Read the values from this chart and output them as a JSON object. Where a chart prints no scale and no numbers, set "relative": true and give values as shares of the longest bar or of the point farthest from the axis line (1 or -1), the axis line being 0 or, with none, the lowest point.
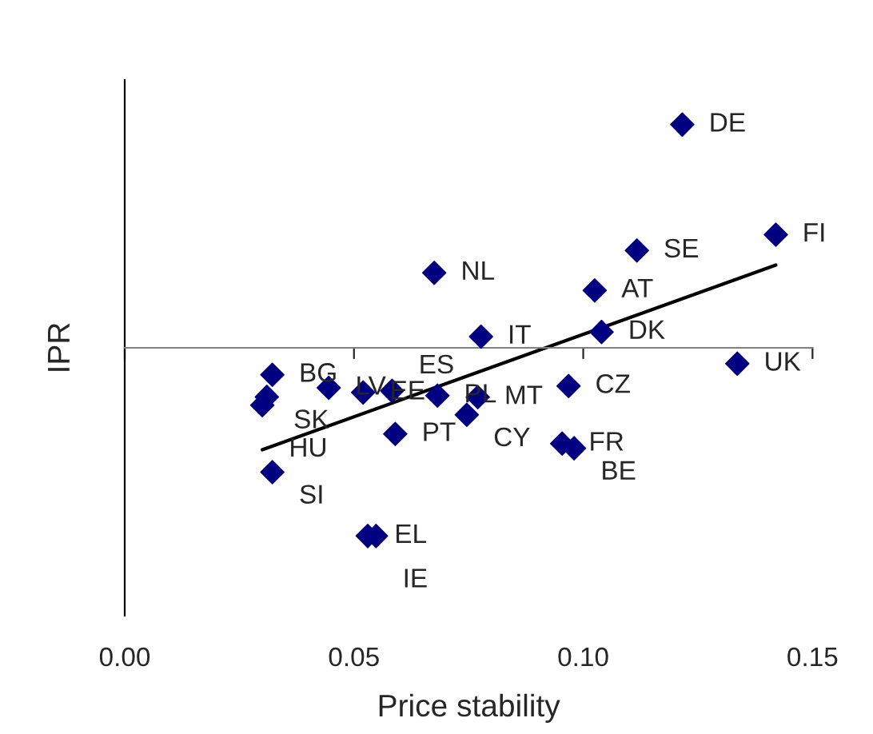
{
  "chart_data": {
    "type": "scatter",
    "xlabel": "Price stability",
    "ylabel": "IPR",
    "relative": true,
    "xlim": [
      0,
      0.15
    ],
    "xticks": [
      {
        "value": 0,
        "label": "0.00"
      },
      {
        "value": 0.05,
        "label": "0.05"
      },
      {
        "value": 0.1,
        "label": "0.10"
      },
      {
        "value": 0.15,
        "label": "0.15"
      }
    ],
    "grid": false,
    "legend": false,
    "marker": "diamond",
    "series": [
      {
        "color": "#000080",
        "x": [
          0.1216,
          0.142,
          0.1117,
          0.1025,
          0.0675,
          0.0777,
          0.104,
          0.1336,
          0.0968,
          0.0322,
          0.031,
          0.03,
          0.0445,
          0.052,
          0.0583,
          0.0682,
          0.077,
          0.0746,
          0.059,
          0.0322,
          0.053,
          0.0548,
          0.0954,
          0.098
        ],
        "values": [
          1,
          0.507,
          0.436,
          0.257,
          0.336,
          0.05,
          0.071,
          -0.071,
          -0.171,
          -0.121,
          -0.22,
          -0.257,
          -0.179,
          -0.2,
          -0.193,
          -0.214,
          -0.221,
          -0.3,
          -0.386,
          -0.557,
          -0.843,
          -0.843,
          -0.429,
          -0.45
        ]
      },
      {
        "type": "line",
        "color": "#000000",
        "marker": "none",
        "line_style": "solid",
        "x": [
          0.03,
          0.142
        ],
        "values": [
          -0.457,
          0.371
        ]
      }
    ],
    "annotations": [
      {
        "text": "DE",
        "x": 0.1216,
        "y": 1
      },
      {
        "text": "FI",
        "x": 0.142,
        "y": 0.507
      },
      {
        "text": "SE",
        "x": 0.1117,
        "y": 0.436
      },
      {
        "text": "AT",
        "x": 0.1025,
        "y": 0.257
      },
      {
        "text": "NL",
        "x": 0.0675,
        "y": 0.336
      },
      {
        "text": "IT",
        "x": 0.0777,
        "y": 0.05
      },
      {
        "text": "DK",
        "x": 0.104,
        "y": 0.071
      },
      {
        "text": "UK",
        "x": 0.1336,
        "y": -0.071
      },
      {
        "text": "CZ",
        "x": 0.0968,
        "y": -0.171
      },
      {
        "text": "BG",
        "x": 0.0322,
        "y": -0.121
      },
      {
        "text": "SK",
        "x": 0.031,
        "y": -0.22
      },
      {
        "text": "HU",
        "x": 0.03,
        "y": -0.257
      },
      {
        "text": "LV",
        "x": 0.0445,
        "y": -0.179
      },
      {
        "text": "EE",
        "x": 0.052,
        "y": -0.2
      },
      {
        "text": "ES",
        "x": 0.0583,
        "y": -0.193
      },
      {
        "text": "PL",
        "x": 0.0682,
        "y": -0.214
      },
      {
        "text": "MT",
        "x": 0.077,
        "y": -0.221
      },
      {
        "text": "CY",
        "x": 0.0746,
        "y": -0.3
      },
      {
        "text": "PT",
        "x": 0.059,
        "y": -0.386
      },
      {
        "text": "SI",
        "x": 0.0322,
        "y": -0.557
      },
      {
        "text": "EL",
        "x": 0.053,
        "y": -0.843
      },
      {
        "text": "IE",
        "x": 0.0548,
        "y": -0.843
      },
      {
        "text": "FR",
        "x": 0.0954,
        "y": -0.429
      },
      {
        "text": "BE",
        "x": 0.098,
        "y": -0.45
      }
    ]
  }
}
